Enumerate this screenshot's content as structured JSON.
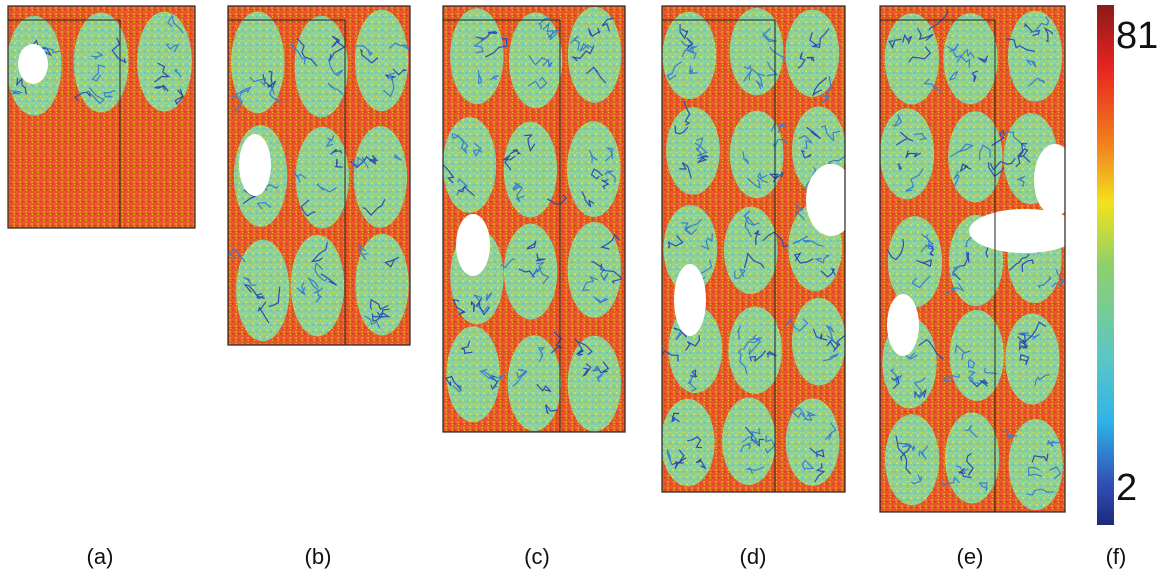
{
  "panels": [
    {
      "label": "(a)"
    },
    {
      "label": "(b)"
    },
    {
      "label": "(c)"
    },
    {
      "label": "(d)"
    },
    {
      "label": "(e)"
    }
  ],
  "colorbar": {
    "max": 81,
    "min": 2,
    "label": "(f)"
  }
}
